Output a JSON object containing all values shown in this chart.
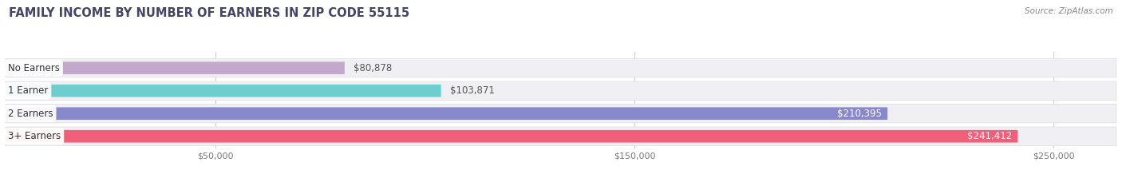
{
  "title": "FAMILY INCOME BY NUMBER OF EARNERS IN ZIP CODE 55115",
  "source": "Source: ZipAtlas.com",
  "categories": [
    "No Earners",
    "1 Earner",
    "2 Earners",
    "3+ Earners"
  ],
  "values": [
    80878,
    103871,
    210395,
    241412
  ],
  "bar_colors": [
    "#c4a8cc",
    "#6ecece",
    "#8888cc",
    "#f0607a"
  ],
  "bar_bg_colors": [
    "#e8dced",
    "#c8ecec",
    "#d0d0ea",
    "#faafc4"
  ],
  "value_labels": [
    "$80,878",
    "$103,871",
    "$210,395",
    "$241,412"
  ],
  "value_label_colors": [
    "#555555",
    "#555555",
    "#ffffff",
    "#ffffff"
  ],
  "x_ticks": [
    50000,
    150000,
    250000
  ],
  "x_tick_labels": [
    "$50,000",
    "$150,000",
    "$250,000"
  ],
  "xlim_max": 265000,
  "title_fontsize": 10.5,
  "source_fontsize": 7.5,
  "label_fontsize": 8.5,
  "value_fontsize": 8.5,
  "tick_fontsize": 8,
  "background_color": "#ffffff",
  "row_bg_color": "#f0f0f4",
  "grid_color": "#cccccc",
  "title_color": "#444466",
  "source_color": "#888888",
  "label_text_color": "#333333",
  "tick_color": "#777777"
}
